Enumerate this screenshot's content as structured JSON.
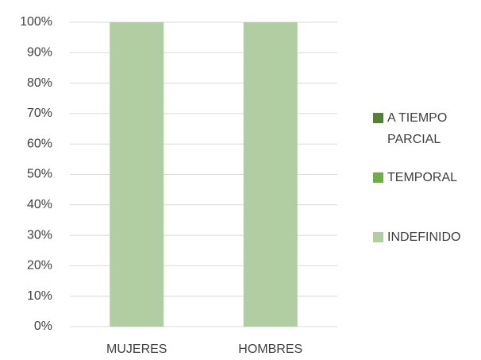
{
  "chart_data": {
    "type": "stacked_bar_100",
    "categories": [
      "MUJERES",
      "HOMBRES"
    ],
    "series": [
      {
        "name": "A TIEMPO PARCIAL",
        "color": "#548235",
        "values": [
          0,
          0
        ]
      },
      {
        "name": "TEMPORAL",
        "color": "#70ad47",
        "values": [
          0,
          0
        ]
      },
      {
        "name": "INDEFINIDO",
        "color": "#b0cea2",
        "values": [
          100,
          100
        ]
      }
    ],
    "ylim": [
      0,
      100
    ],
    "yticks": [
      {
        "value": 0,
        "label": "0%"
      },
      {
        "value": 10,
        "label": "10%"
      },
      {
        "value": 20,
        "label": "20%"
      },
      {
        "value": 30,
        "label": "30%"
      },
      {
        "value": 40,
        "label": "40%"
      },
      {
        "value": 50,
        "label": "50%"
      },
      {
        "value": 60,
        "label": "60%"
      },
      {
        "value": 70,
        "label": "70%"
      },
      {
        "value": 80,
        "label": "80%"
      },
      {
        "value": 90,
        "label": "90%"
      },
      {
        "value": 100,
        "label": "100%"
      }
    ],
    "grid": true,
    "legend": "right"
  }
}
